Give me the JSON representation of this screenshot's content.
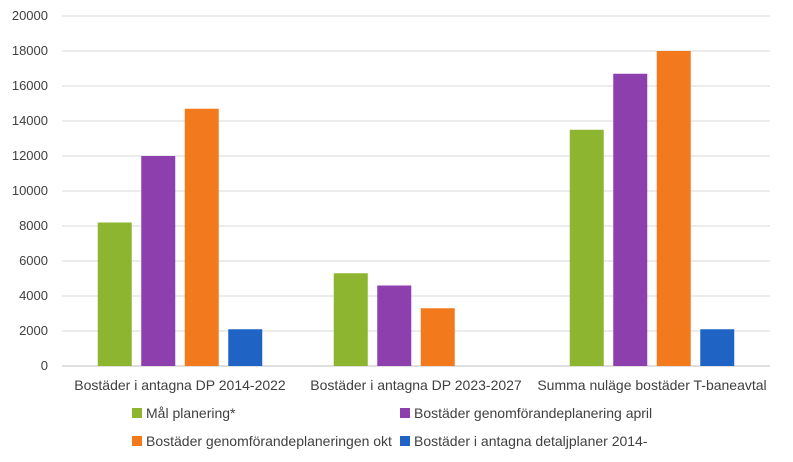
{
  "chart_data": {
    "type": "bar",
    "categories": [
      "Bostäder i antagna DP 2014-2022",
      "Bostäder i antagna DP 2023-2027",
      "Summa nuläge bostäder T-baneavtal"
    ],
    "series": [
      {
        "name": "Mål planering*",
        "color": "#8DB52F",
        "values": [
          8200,
          5300,
          13500
        ]
      },
      {
        "name": "Bostäder genomförandeplanering april",
        "color": "#8E3FAE",
        "values": [
          12000,
          4600,
          16700
        ]
      },
      {
        "name": "Bostäder genomförandeplaneringen okt",
        "color": "#F27A1D",
        "values": [
          14700,
          3300,
          18000
        ]
      },
      {
        "name": "Bostäder i antagna detaljplaner 2014-",
        "color": "#1F64C4",
        "values": [
          2100,
          null,
          2100
        ]
      }
    ],
    "ylim": [
      0,
      20000
    ],
    "yticks": [
      0,
      2000,
      4000,
      6000,
      8000,
      10000,
      12000,
      14000,
      16000,
      18000,
      20000
    ],
    "grid": true,
    "legend_position": "bottom",
    "title": "",
    "xlabel": "",
    "ylabel": ""
  }
}
